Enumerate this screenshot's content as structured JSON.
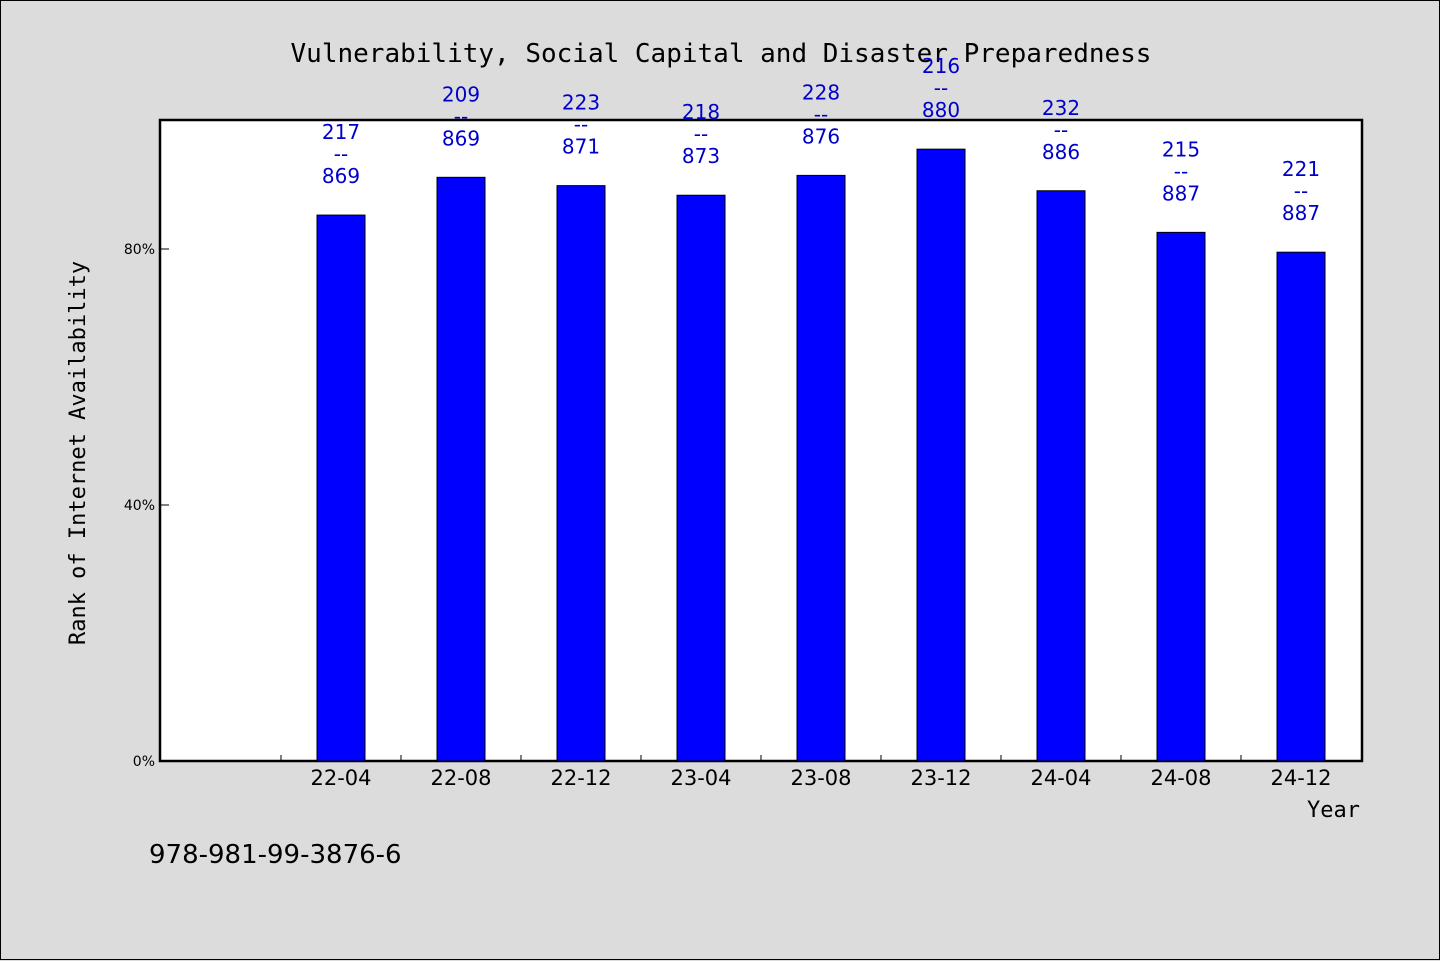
{
  "chart_data": {
    "type": "bar",
    "title": "Vulnerability, Social Capital and Disaster Preparedness",
    "xlabel": "Year",
    "ylabel": "Rank of Internet Availability",
    "categories": [
      "22-04",
      "22-08",
      "22-12",
      "23-04",
      "23-08",
      "23-12",
      "24-04",
      "24-08",
      "24-12"
    ],
    "series": [
      {
        "values": [
          85.3,
          91.2,
          89.9,
          88.4,
          91.5,
          95.6,
          89.1,
          82.6,
          79.5
        ],
        "color": "#0000ff"
      }
    ],
    "data_labels": [
      [
        "217",
        "--",
        "869"
      ],
      [
        "209",
        "--",
        "869"
      ],
      [
        "223",
        "--",
        "871"
      ],
      [
        "218",
        "--",
        "873"
      ],
      [
        "228",
        "--",
        "876"
      ],
      [
        "216",
        "--",
        "880"
      ],
      [
        "232",
        "--",
        "886"
      ],
      [
        "215",
        "--",
        "887"
      ],
      [
        "221",
        "--",
        "887"
      ]
    ],
    "yticks": [
      0,
      40,
      80
    ],
    "ytick_labels": [
      "0%",
      "40%",
      "80%"
    ],
    "ylim": [
      0,
      100
    ],
    "grid": false,
    "legend": "none",
    "label_color": "#0000cc"
  },
  "footer_text": "978-981-99-3876-6"
}
